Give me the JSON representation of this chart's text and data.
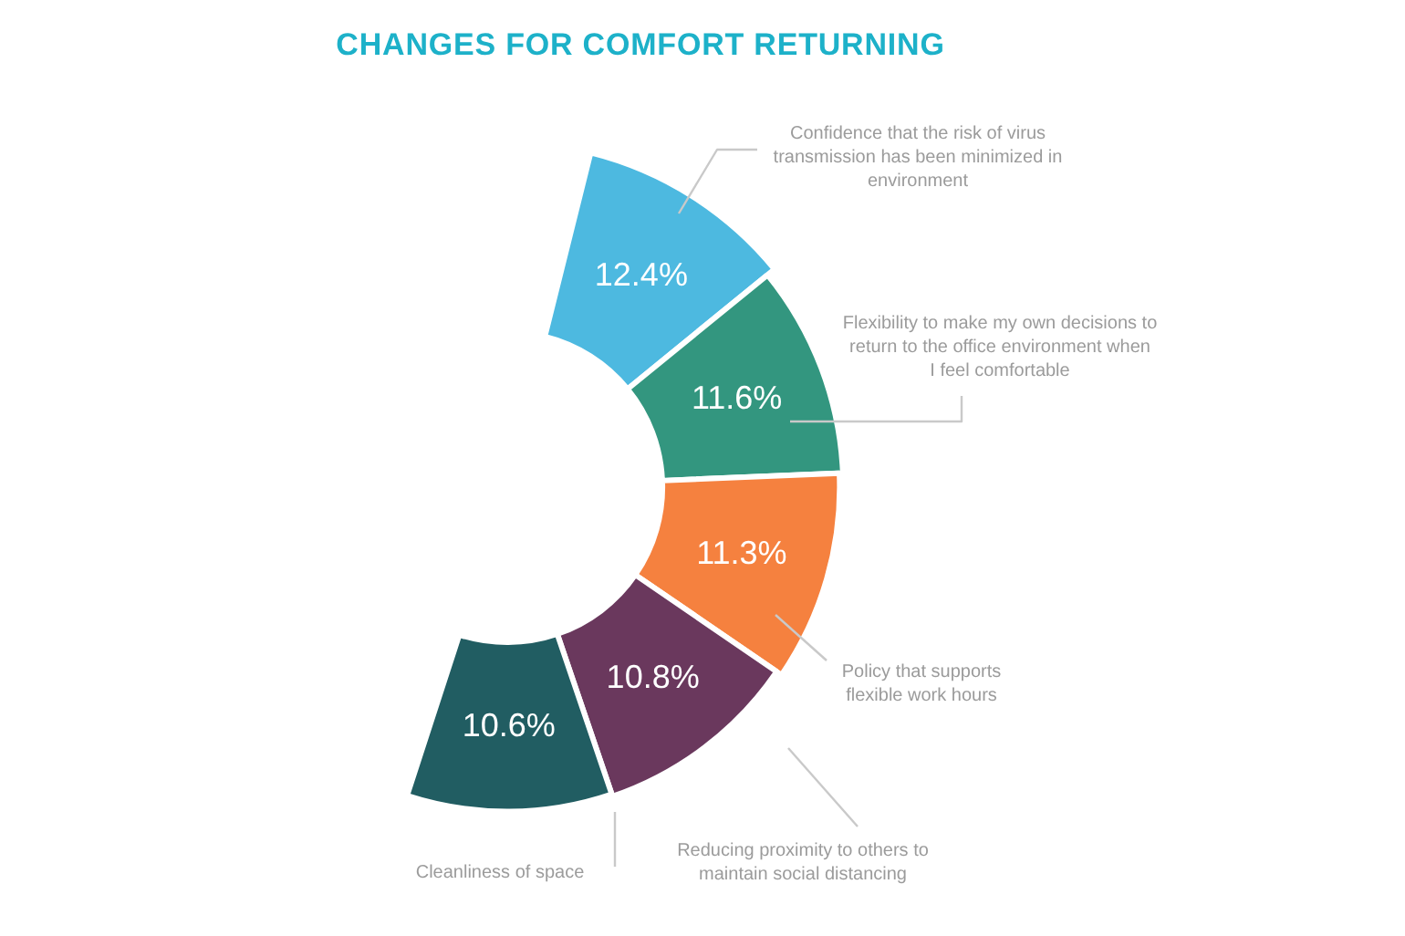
{
  "chart_data": {
    "type": "donut",
    "title": "CHANGES FOR COMFORT RETURNING",
    "categories": [
      "Confidence that the risk of virus transmission has been minimized in environment",
      "Flexibility to make my own decisions to return to the office environment when I feel comfortable",
      "Policy that supports flexible work hours",
      "Reducing proximity to others to maintain social distancing",
      "Cleanliness of space"
    ],
    "values": [
      12.4,
      11.6,
      11.3,
      10.8,
      10.6
    ],
    "colors": [
      "#4db9e0",
      "#33967f",
      "#f5813f",
      "#6a385d",
      "#215d62"
    ],
    "value_labels": [
      "12.4%",
      "11.6%",
      "11.3%",
      "10.8%",
      "10.6%"
    ]
  }
}
